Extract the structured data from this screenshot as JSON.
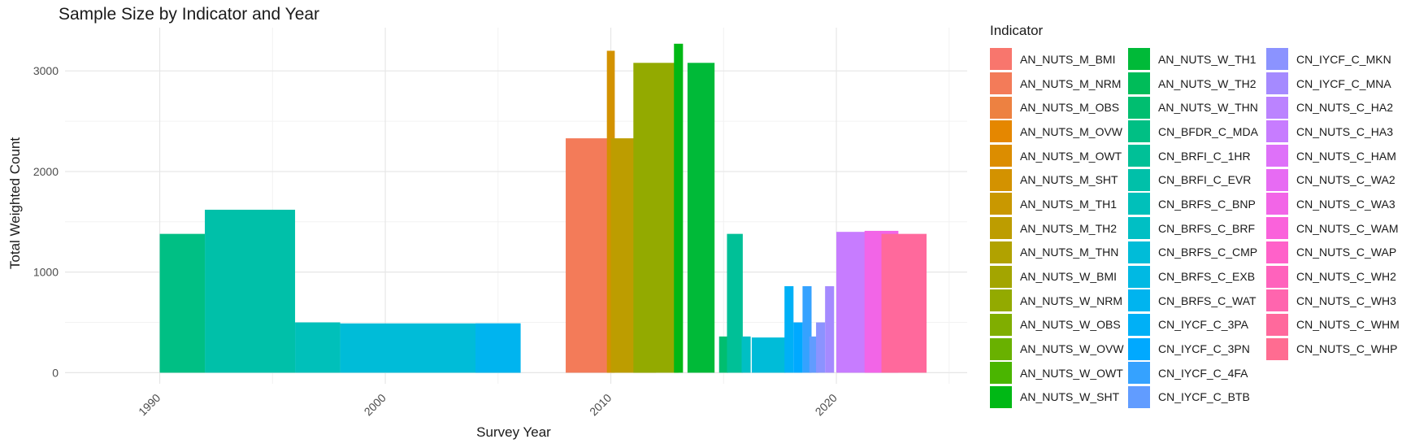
{
  "chart_data": {
    "type": "bar",
    "title": "Sample Size by Indicator and Year",
    "xlabel": "Survey Year",
    "ylabel": "Total Weighted Count",
    "xlim": [
      1985.8,
      2025.8
    ],
    "ylim": [
      -110,
      3430
    ],
    "x_ticks": [
      1990,
      2000,
      2010,
      2020
    ],
    "y_ticks": [
      0,
      1000,
      2000,
      3000
    ],
    "grid": true,
    "legend_title": "Indicator",
    "legend_position": "right",
    "legend_columns": 3,
    "series": [
      {
        "name": "AN_NUTS_M_BMI",
        "color": "#F8766D"
      },
      {
        "name": "AN_NUTS_M_NRM",
        "color": "#F37B59"
      },
      {
        "name": "AN_NUTS_M_OBS",
        "color": "#ED8141"
      },
      {
        "name": "AN_NUTS_M_OVW",
        "color": "#E58700"
      },
      {
        "name": "AN_NUTS_M_OWT",
        "color": "#DC8D00"
      },
      {
        "name": "AN_NUTS_M_SHT",
        "color": "#D39200"
      },
      {
        "name": "AN_NUTS_M_TH1",
        "color": "#C99800"
      },
      {
        "name": "AN_NUTS_M_TH2",
        "color": "#BD9D00"
      },
      {
        "name": "AN_NUTS_M_THN",
        "color": "#B1A200"
      },
      {
        "name": "AN_NUTS_W_BMI",
        "color": "#A3A500"
      },
      {
        "name": "AN_NUTS_W_NRM",
        "color": "#93AA00"
      },
      {
        "name": "AN_NUTS_W_OBS",
        "color": "#80AE00"
      },
      {
        "name": "AN_NUTS_W_OVW",
        "color": "#69B100"
      },
      {
        "name": "AN_NUTS_W_OWT",
        "color": "#4AB500"
      },
      {
        "name": "AN_NUTS_W_SHT",
        "color": "#00B815"
      },
      {
        "name": "AN_NUTS_W_TH1",
        "color": "#00BA38"
      },
      {
        "name": "AN_NUTS_W_TH2",
        "color": "#00BC59"
      },
      {
        "name": "AN_NUTS_W_THN",
        "color": "#00BE70"
      },
      {
        "name": "CN_BFDR_C_MDA",
        "color": "#00BF84"
      },
      {
        "name": "CN_BRFI_C_1HR",
        "color": "#00C097"
      },
      {
        "name": "CN_BRFI_C_EVR",
        "color": "#00C0A9"
      },
      {
        "name": "CN_BRFS_C_BNP",
        "color": "#00C0BA"
      },
      {
        "name": "CN_BRFS_C_BRF",
        "color": "#00BFC4"
      },
      {
        "name": "CN_BRFS_C_CMP",
        "color": "#00BCD8"
      },
      {
        "name": "CN_BRFS_C_EXB",
        "color": "#00B9E3"
      },
      {
        "name": "CN_BRFS_C_WAT",
        "color": "#00B4EF"
      },
      {
        "name": "CN_IYCF_C_3PA",
        "color": "#00B0F6"
      },
      {
        "name": "CN_IYCF_C_3PN",
        "color": "#00A9FF"
      },
      {
        "name": "CN_IYCF_C_4FA",
        "color": "#35A2FF"
      },
      {
        "name": "CN_IYCF_C_BTB",
        "color": "#619CFF"
      },
      {
        "name": "CN_IYCF_C_MKN",
        "color": "#8B93FF"
      },
      {
        "name": "CN_IYCF_C_MNA",
        "color": "#A58AFF"
      },
      {
        "name": "CN_NUTS_C_HA2",
        "color": "#BB83FF"
      },
      {
        "name": "CN_NUTS_C_HA3",
        "color": "#C77CFF"
      },
      {
        "name": "CN_NUTS_C_HAM",
        "color": "#DE71F9"
      },
      {
        "name": "CN_NUTS_C_WA2",
        "color": "#E76BF3"
      },
      {
        "name": "CN_NUTS_C_WA3",
        "color": "#F265E7"
      },
      {
        "name": "CN_NUTS_C_WAM",
        "color": "#FA62DB"
      },
      {
        "name": "CN_NUTS_C_WAP",
        "color": "#FF61C9"
      },
      {
        "name": "CN_NUTS_C_WH2",
        "color": "#FF62BC"
      },
      {
        "name": "CN_NUTS_C_WH3",
        "color": "#FF65AE"
      },
      {
        "name": "CN_NUTS_C_WHM",
        "color": "#FF699C"
      },
      {
        "name": "CN_NUTS_C_WHP",
        "color": "#FF6C91"
      }
    ],
    "bars": [
      {
        "x": 1991,
        "y": 1380,
        "width": 2.0,
        "color": "#00BF84"
      },
      {
        "x": 1994,
        "y": 1620,
        "width": 4.0,
        "color": "#00C0A9"
      },
      {
        "x": 1997,
        "y": 500,
        "width": 2.0,
        "color": "#00C0BA"
      },
      {
        "x": 2002,
        "y": 490,
        "width": 8.0,
        "color": "#00BCD8"
      },
      {
        "x": 2005,
        "y": 490,
        "width": 2.0,
        "color": "#00B4EF"
      },
      {
        "x": 2009,
        "y": 2330,
        "width": 2.0,
        "color": "#F37B59"
      },
      {
        "x": 2010,
        "y": 3200,
        "width": 0.35,
        "color": "#D39200"
      },
      {
        "x": 2011,
        "y": 2330,
        "width": 2.0,
        "color": "#BD9D00"
      },
      {
        "x": 2012,
        "y": 3080,
        "width": 2.0,
        "color": "#93AA00"
      },
      {
        "x": 2013,
        "y": 3270,
        "width": 0.4,
        "color": "#00B815"
      },
      {
        "x": 2014,
        "y": 3080,
        "width": 1.2,
        "color": "#00BA38"
      },
      {
        "x": 2015,
        "y": 360,
        "width": 0.4,
        "color": "#00BE70"
      },
      {
        "x": 2015.5,
        "y": 1380,
        "width": 0.7,
        "color": "#00C097"
      },
      {
        "x": 2016,
        "y": 360,
        "width": 0.4,
        "color": "#00BFC4"
      },
      {
        "x": 2017,
        "y": 350,
        "width": 1.5,
        "color": "#00BCD8"
      },
      {
        "x": 2017.9,
        "y": 860,
        "width": 0.4,
        "color": "#00B0F6"
      },
      {
        "x": 2018.3,
        "y": 500,
        "width": 0.4,
        "color": "#00A9FF"
      },
      {
        "x": 2018.7,
        "y": 860,
        "width": 0.4,
        "color": "#35A2FF"
      },
      {
        "x": 2019,
        "y": 360,
        "width": 0.4,
        "color": "#619CFF"
      },
      {
        "x": 2019.3,
        "y": 500,
        "width": 0.4,
        "color": "#8B93FF"
      },
      {
        "x": 2019.7,
        "y": 860,
        "width": 0.4,
        "color": "#A58AFF"
      },
      {
        "x": 2021,
        "y": 1400,
        "width": 2.0,
        "color": "#C77CFF"
      },
      {
        "x": 2022,
        "y": 1410,
        "width": 1.5,
        "color": "#F265E7"
      },
      {
        "x": 2023,
        "y": 1380,
        "width": 2.0,
        "color": "#FF699C"
      }
    ]
  }
}
